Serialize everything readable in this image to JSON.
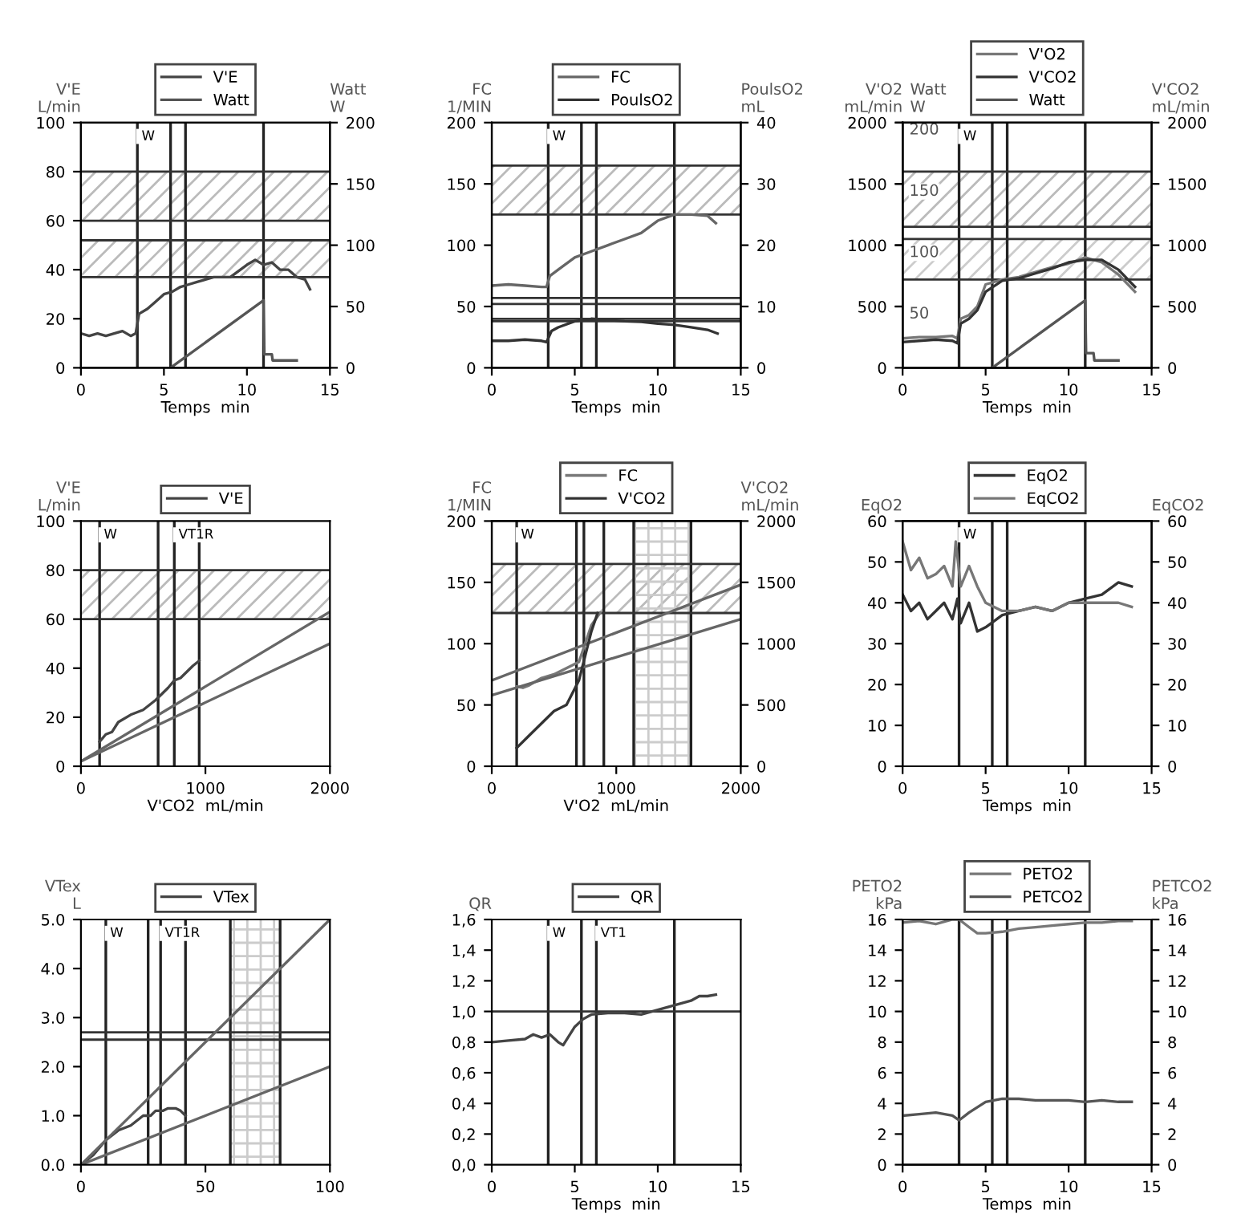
{
  "chart_data": [
    {
      "type": "line",
      "xlabel": "Temps  min",
      "ylabel": "V'E\nL/min",
      "y2label": "Watt\nW",
      "xlim": [
        0,
        15
      ],
      "xticks": [
        0,
        5,
        10,
        15
      ],
      "ylim": [
        0,
        100
      ],
      "yticks": [
        0,
        20,
        40,
        60,
        80,
        100
      ],
      "y2lim": [
        0,
        200
      ],
      "y2ticks": [
        0,
        50,
        100,
        150,
        200
      ],
      "legend": "top",
      "series": [
        {
          "name": "V'E",
          "color": "#444444",
          "x": [
            0,
            0.5,
            1,
            1.5,
            2,
            2.5,
            3,
            3.3,
            3.5,
            4,
            4.5,
            5,
            5.5,
            6,
            6.5,
            7,
            8,
            9,
            10,
            10.5,
            11,
            11.5,
            12,
            12.5,
            13,
            13.5,
            13.8
          ],
          "values": [
            14,
            13,
            14,
            13,
            14,
            15,
            13,
            14,
            22,
            24,
            27,
            30,
            31,
            33,
            34,
            35,
            37,
            37,
            42,
            44,
            42,
            43,
            40,
            40,
            37,
            36,
            32
          ]
        },
        {
          "name": "Watt",
          "color": "#555555",
          "axis": "y2",
          "x": [
            5.4,
            11,
            11.05,
            11.5,
            11.55,
            13
          ],
          "values": [
            0,
            55,
            11,
            11,
            6,
            6
          ]
        }
      ],
      "ref_lines": [
        {
          "axis": "x",
          "value": 3.4,
          "label": "W"
        },
        {
          "axis": "x",
          "value": 5.4
        },
        {
          "axis": "x",
          "value": 6.3
        },
        {
          "axis": "x",
          "value": 11
        },
        {
          "axis": "y",
          "value": 80
        },
        {
          "axis": "y",
          "value": 60
        },
        {
          "axis": "y",
          "value": 52
        },
        {
          "axis": "y",
          "value": 37
        }
      ],
      "bands": [
        {
          "axis": "y",
          "from": 60,
          "to": 80,
          "color": "#bbbbbb"
        },
        {
          "axis": "y",
          "from": 37,
          "to": 52,
          "color": "#bbbbbb"
        }
      ]
    },
    {
      "type": "line",
      "xlabel": "Temps  min",
      "ylabel": "FC\n1/MIN",
      "y2label": "PoulsO2\nmL",
      "xlim": [
        0,
        15
      ],
      "xticks": [
        0,
        5,
        10,
        15
      ],
      "ylim": [
        0,
        200
      ],
      "yticks": [
        0,
        50,
        100,
        150,
        200
      ],
      "y2lim": [
        0,
        40
      ],
      "y2ticks": [
        0,
        10,
        20,
        30,
        40
      ],
      "legend": "top",
      "series": [
        {
          "name": "FC",
          "color": "#666666",
          "x": [
            0,
            1,
            2,
            3,
            3.3,
            3.5,
            4,
            5,
            6,
            7,
            8,
            9,
            10,
            11,
            12,
            13,
            13.5
          ],
          "values": [
            67,
            68,
            67,
            66,
            66,
            75,
            80,
            90,
            95,
            100,
            105,
            110,
            120,
            125,
            125,
            124,
            118
          ]
        },
        {
          "name": "PoulsO2",
          "color": "#333333",
          "axis": "y2",
          "x": [
            0,
            1,
            2,
            3,
            3.3,
            3.6,
            4,
            5,
            6,
            7,
            8,
            9,
            10,
            11,
            12,
            13,
            13.6
          ],
          "values": [
            4.4,
            4.4,
            4.6,
            4.4,
            4.2,
            6,
            6.6,
            7.6,
            8,
            7.8,
            7.6,
            7.5,
            7.2,
            7,
            6.6,
            6.2,
            5.6
          ]
        }
      ],
      "ref_lines": [
        {
          "axis": "x",
          "value": 3.4,
          "label": "W"
        },
        {
          "axis": "x",
          "value": 5.4
        },
        {
          "axis": "x",
          "value": 6.3
        },
        {
          "axis": "x",
          "value": 11
        },
        {
          "axis": "y",
          "value": 165
        },
        {
          "axis": "y",
          "value": 125
        },
        {
          "axis": "y",
          "value": 57
        },
        {
          "axis": "y",
          "value": 52
        },
        {
          "axis": "y",
          "value": 40
        },
        {
          "axis": "y",
          "value": 38
        }
      ],
      "bands": [
        {
          "axis": "y",
          "from": 125,
          "to": 165,
          "color": "#bbbbbb"
        }
      ]
    },
    {
      "type": "line",
      "xlabel": "Temps  min",
      "ylabel": "V'O2\nmL/min",
      "y3label": "Watt\nW",
      "y2label": "V'CO2\nmL/min",
      "xlim": [
        0,
        15
      ],
      "xticks": [
        0,
        5,
        10,
        15
      ],
      "ylim": [
        0,
        2000
      ],
      "yticks": [
        0,
        500,
        1000,
        1500,
        2000
      ],
      "y2lim": [
        0,
        2000
      ],
      "y2ticks": [
        0,
        500,
        1000,
        1500,
        2000
      ],
      "y3lim": [
        0,
        200
      ],
      "y3ticks": [
        50,
        100,
        150,
        200
      ],
      "legend": "top",
      "series": [
        {
          "name": "V'O2",
          "color": "#777777",
          "x": [
            0,
            1,
            2,
            3,
            3.3,
            3.5,
            4,
            4.5,
            5,
            6,
            7,
            8,
            9,
            10,
            11,
            12,
            13,
            14
          ],
          "values": [
            240,
            250,
            250,
            260,
            240,
            400,
            430,
            500,
            680,
            720,
            740,
            780,
            820,
            850,
            900,
            860,
            760,
            620
          ]
        },
        {
          "name": "V'CO2",
          "color": "#333333",
          "axis": "y2",
          "x": [
            0,
            1,
            2,
            3,
            3.3,
            3.5,
            4,
            4.5,
            5,
            6,
            7,
            8,
            9,
            10,
            11,
            12,
            13,
            14
          ],
          "values": [
            210,
            220,
            230,
            220,
            200,
            360,
            400,
            470,
            620,
            710,
            730,
            770,
            810,
            860,
            880,
            880,
            800,
            660
          ]
        },
        {
          "name": "Watt",
          "color": "#555555",
          "axis": "y3",
          "x": [
            5.4,
            11,
            11.05,
            11.5,
            11.55,
            13
          ],
          "values": [
            0,
            55,
            12,
            12,
            6,
            6
          ]
        }
      ],
      "ref_lines": [
        {
          "axis": "x",
          "value": 3.4,
          "label": "W"
        },
        {
          "axis": "x",
          "value": 5.4
        },
        {
          "axis": "x",
          "value": 6.3
        },
        {
          "axis": "x",
          "value": 11
        },
        {
          "axis": "y",
          "value": 1600
        },
        {
          "axis": "y",
          "value": 1150
        },
        {
          "axis": "y",
          "value": 1050
        },
        {
          "axis": "y",
          "value": 720
        }
      ],
      "bands": [
        {
          "axis": "y",
          "from": 1150,
          "to": 1600,
          "color": "#bbbbbb"
        },
        {
          "axis": "y",
          "from": 720,
          "to": 1050,
          "color": "#cccccc"
        }
      ]
    },
    {
      "type": "line",
      "xlabel": "V'CO2  mL/min",
      "ylabel": "V'E\nL/min",
      "xlim": [
        0,
        2000
      ],
      "xticks": [
        0,
        1000,
        2000
      ],
      "ylim": [
        0,
        100
      ],
      "yticks": [
        0,
        20,
        40,
        60,
        80,
        100
      ],
      "legend": "top",
      "series": [
        {
          "name": "V'E",
          "color": "#444444",
          "x": [
            150,
            200,
            250,
            300,
            400,
            500,
            600,
            700,
            750,
            800,
            900,
            950
          ],
          "values": [
            10,
            13,
            14,
            18,
            21,
            23,
            27,
            32,
            35,
            36,
            41,
            43
          ]
        },
        {
          "type": "line",
          "color": "#666666",
          "x": [
            0,
            2000
          ],
          "values": [
            2,
            63
          ]
        },
        {
          "type": "line",
          "color": "#666666",
          "x": [
            0,
            2000
          ],
          "values": [
            2,
            50
          ]
        }
      ],
      "ref_lines": [
        {
          "axis": "x",
          "value": 150,
          "label": "W"
        },
        {
          "axis": "x",
          "value": 620
        },
        {
          "axis": "x",
          "value": 750,
          "label": "VT1R"
        },
        {
          "axis": "x",
          "value": 950
        },
        {
          "axis": "y",
          "value": 80
        },
        {
          "axis": "y",
          "value": 60
        }
      ],
      "bands": [
        {
          "axis": "y",
          "from": 60,
          "to": 80,
          "color": "#bbbbbb"
        }
      ]
    },
    {
      "type": "line",
      "xlabel": "V'O2  mL/min",
      "ylabel": "FC\n1/MIN",
      "y2label": "V'CO2\nmL/min",
      "xlim": [
        0,
        2000
      ],
      "xticks": [
        0,
        1000,
        2000
      ],
      "ylim": [
        0,
        200
      ],
      "yticks": [
        0,
        50,
        100,
        150,
        200
      ],
      "y2lim": [
        0,
        2000
      ],
      "y2ticks": [
        0,
        500,
        1000,
        1500,
        2000
      ],
      "legend": "top",
      "series": [
        {
          "name": "FC",
          "color": "#777777",
          "x": [
            200,
            250,
            300,
            400,
            500,
            600,
            700,
            750,
            800,
            870
          ],
          "values": [
            65,
            64,
            66,
            72,
            75,
            80,
            85,
            100,
            115,
            125
          ]
        },
        {
          "name": "V'CO2",
          "color": "#333333",
          "axis": "y2",
          "x": [
            200,
            300,
            400,
            500,
            600,
            650,
            700,
            750,
            800,
            850
          ],
          "values": [
            150,
            250,
            350,
            450,
            500,
            600,
            700,
            900,
            1100,
            1250
          ]
        },
        {
          "type": "line",
          "color": "#666666",
          "x": [
            0,
            2000
          ],
          "values": [
            70,
            148
          ]
        },
        {
          "type": "line",
          "color": "#666666",
          "x": [
            0,
            2000
          ],
          "values": [
            58,
            120
          ]
        }
      ],
      "ref_lines": [
        {
          "axis": "x",
          "value": 200,
          "label": "W"
        },
        {
          "axis": "x",
          "value": 680
        },
        {
          "axis": "x",
          "value": 740
        },
        {
          "axis": "x",
          "value": 900
        },
        {
          "axis": "x",
          "value": 1140
        },
        {
          "axis": "x",
          "value": 1600
        },
        {
          "axis": "y",
          "value": 165
        },
        {
          "axis": "y",
          "value": 125
        }
      ],
      "bands": [
        {
          "axis": "y",
          "from": 125,
          "to": 165,
          "color": "#bbbbbb"
        },
        {
          "axis": "x",
          "from": 1140,
          "to": 1600,
          "color": "#cccccc"
        }
      ]
    },
    {
      "type": "line",
      "xlabel": "Temps  min",
      "ylabel": "EqO2",
      "y2label": "EqCO2",
      "xlim": [
        0,
        15
      ],
      "xticks": [
        0,
        5,
        10,
        15
      ],
      "ylim": [
        0,
        60
      ],
      "yticks": [
        0,
        10,
        20,
        30,
        40,
        50,
        60
      ],
      "y2lim": [
        0,
        60
      ],
      "y2ticks": [
        0,
        10,
        20,
        30,
        40,
        50,
        60
      ],
      "legend": "top",
      "series": [
        {
          "name": "EqO2",
          "color": "#333333",
          "x": [
            0,
            0.5,
            1,
            1.5,
            2,
            2.5,
            3,
            3.3,
            3.5,
            4,
            4.5,
            5,
            6,
            7,
            8,
            9,
            10,
            11,
            12,
            13,
            13.8
          ],
          "values": [
            42,
            38,
            40,
            36,
            38,
            40,
            36,
            41,
            35,
            40,
            33,
            34,
            37,
            38,
            39,
            38,
            40,
            41,
            42,
            45,
            44
          ]
        },
        {
          "name": "EqCO2",
          "color": "#777777",
          "axis": "y2",
          "x": [
            0,
            0.5,
            1,
            1.5,
            2,
            2.5,
            3,
            3.2,
            3.5,
            4,
            4.5,
            5,
            6,
            7,
            8,
            9,
            10,
            11,
            12,
            13,
            13.8
          ],
          "values": [
            55,
            48,
            51,
            46,
            47,
            49,
            44,
            55,
            44,
            49,
            44,
            40,
            38,
            38,
            39,
            38,
            40,
            40,
            40,
            40,
            39
          ]
        }
      ],
      "ref_lines": [
        {
          "axis": "x",
          "value": 3.4,
          "label": "W"
        },
        {
          "axis": "x",
          "value": 5.4
        },
        {
          "axis": "x",
          "value": 6.3
        },
        {
          "axis": "x",
          "value": 11
        }
      ]
    },
    {
      "type": "line",
      "ylabel": "VTex\nL",
      "xlim": [
        0,
        100
      ],
      "xticks": [
        0,
        50,
        100
      ],
      "ylim": [
        0,
        5
      ],
      "yticks": [
        {
          "value": 0,
          "label": "0.0"
        },
        {
          "value": 1,
          "label": "1.0"
        },
        {
          "value": 2,
          "label": "2.0"
        },
        {
          "value": 3,
          "label": "3.0"
        },
        {
          "value": 4,
          "label": "4.0"
        },
        {
          "value": 5,
          "label": "5.0"
        }
      ],
      "legend": "top",
      "series": [
        {
          "name": "VTex",
          "color": "#444444",
          "x": [
            0,
            5,
            10,
            15,
            20,
            25,
            28,
            30,
            33,
            35,
            38,
            40,
            42
          ],
          "values": [
            0,
            0.2,
            0.5,
            0.7,
            0.8,
            1.0,
            1.0,
            1.1,
            1.1,
            1.15,
            1.15,
            1.1,
            1.0
          ]
        },
        {
          "type": "line",
          "color": "#666666",
          "x": [
            0,
            100
          ],
          "values": [
            0,
            5
          ]
        },
        {
          "type": "line",
          "color": "#666666",
          "x": [
            0,
            100
          ],
          "values": [
            0,
            2
          ]
        }
      ],
      "ref_lines": [
        {
          "axis": "x",
          "value": 10,
          "label": "W"
        },
        {
          "axis": "x",
          "value": 27
        },
        {
          "axis": "x",
          "value": 32,
          "label": "VT1R"
        },
        {
          "axis": "x",
          "value": 42
        },
        {
          "axis": "x",
          "value": 60
        },
        {
          "axis": "x",
          "value": 80
        },
        {
          "axis": "y",
          "value": 2.7
        },
        {
          "axis": "y",
          "value": 2.55
        }
      ],
      "bands": [
        {
          "axis": "x",
          "from": 60,
          "to": 80,
          "color": "#cccccc"
        }
      ]
    },
    {
      "type": "line",
      "xlabel": "Temps  min",
      "ylabel": "QR",
      "xlim": [
        0,
        15
      ],
      "xticks": [
        0,
        5,
        10,
        15
      ],
      "ylim": [
        0,
        1.6
      ],
      "yticks": [
        {
          "value": 0,
          "label": "0,0"
        },
        {
          "value": 0.2,
          "label": "0,2"
        },
        {
          "value": 0.4,
          "label": "0,4"
        },
        {
          "value": 0.6,
          "label": "0,6"
        },
        {
          "value": 0.8,
          "label": "0,8"
        },
        {
          "value": 1.0,
          "label": "1,0"
        },
        {
          "value": 1.2,
          "label": "1,2"
        },
        {
          "value": 1.4,
          "label": "1,4"
        },
        {
          "value": 1.6,
          "label": "1,6"
        }
      ],
      "legend": "top",
      "series": [
        {
          "name": "QR",
          "color": "#444444",
          "x": [
            0,
            1,
            2,
            2.5,
            3,
            3.5,
            4,
            4.3,
            5,
            5.5,
            6,
            7,
            8,
            9,
            10,
            11,
            12,
            12.5,
            13,
            13.5
          ],
          "values": [
            0.8,
            0.81,
            0.82,
            0.85,
            0.83,
            0.85,
            0.8,
            0.78,
            0.9,
            0.95,
            0.98,
            0.99,
            0.99,
            0.98,
            1.01,
            1.04,
            1.07,
            1.1,
            1.1,
            1.11
          ]
        }
      ],
      "ref_lines": [
        {
          "axis": "x",
          "value": 3.4,
          "label": "W"
        },
        {
          "axis": "x",
          "value": 5.4
        },
        {
          "axis": "x",
          "value": 6.3,
          "label": "VT1"
        },
        {
          "axis": "x",
          "value": 11
        },
        {
          "axis": "y",
          "value": 1.0
        }
      ]
    },
    {
      "type": "line",
      "xlabel": "Temps  min",
      "ylabel": "PETO2\nkPa",
      "y2label": "PETCO2\nkPa",
      "xlim": [
        0,
        15
      ],
      "xticks": [
        0,
        5,
        10,
        15
      ],
      "ylim": [
        0,
        16
      ],
      "yticks": [
        0,
        2,
        4,
        6,
        8,
        10,
        12,
        14,
        16
      ],
      "y2lim": [
        0,
        16
      ],
      "y2ticks": [
        0,
        2,
        4,
        6,
        8,
        10,
        12,
        14,
        16
      ],
      "legend": "top",
      "series": [
        {
          "name": "PETO2",
          "color": "#777777",
          "x": [
            0,
            1,
            2,
            3,
            3.4,
            4,
            4.5,
            5,
            6,
            7,
            8,
            9,
            10,
            11,
            12,
            13,
            13.8
          ],
          "values": [
            15.8,
            15.9,
            15.7,
            16.0,
            16.0,
            15.5,
            15.1,
            15.1,
            15.2,
            15.4,
            15.5,
            15.6,
            15.7,
            15.8,
            15.8,
            15.9,
            15.9
          ]
        },
        {
          "name": "PETCO2",
          "color": "#555555",
          "axis": "y2",
          "x": [
            0,
            1,
            2,
            3,
            3.4,
            4,
            5,
            6,
            7,
            8,
            9,
            10,
            11,
            12,
            13,
            13.8
          ],
          "values": [
            3.2,
            3.3,
            3.4,
            3.2,
            2.9,
            3.4,
            4.1,
            4.3,
            4.3,
            4.2,
            4.2,
            4.2,
            4.1,
            4.2,
            4.1,
            4.1
          ]
        }
      ],
      "ref_lines": [
        {
          "axis": "x",
          "value": 3.4
        },
        {
          "axis": "x",
          "value": 5.4
        },
        {
          "axis": "x",
          "value": 6.3
        },
        {
          "axis": "x",
          "value": 11
        }
      ]
    }
  ]
}
